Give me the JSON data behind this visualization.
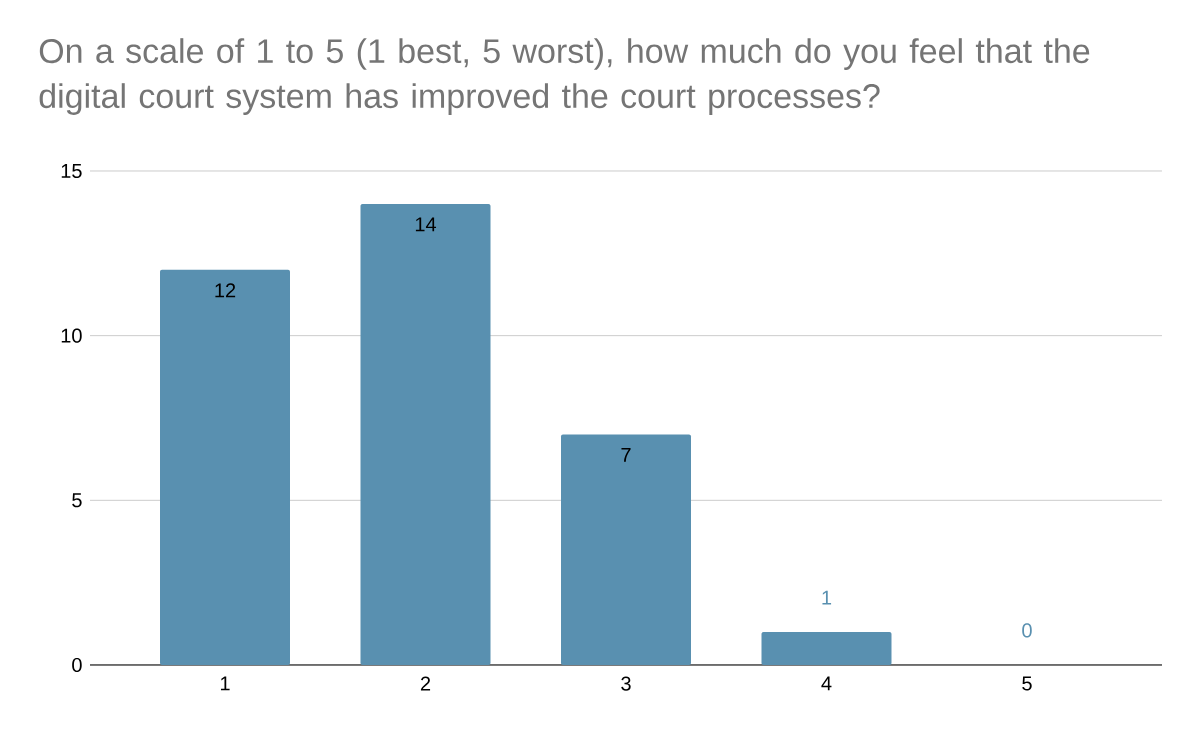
{
  "chart_data": {
    "type": "bar",
    "title": "On a scale of 1 to 5 (1 best, 5 worst), how much do you feel that the digital court system has improved the court processes?",
    "categories": [
      "1",
      "2",
      "3",
      "4",
      "5"
    ],
    "values": [
      12,
      14,
      7,
      1,
      0
    ],
    "color": "#5990b0",
    "ylim": [
      0,
      15
    ],
    "yticks": [
      0,
      5,
      10,
      15
    ],
    "grid": "y",
    "data_labels": true
  }
}
